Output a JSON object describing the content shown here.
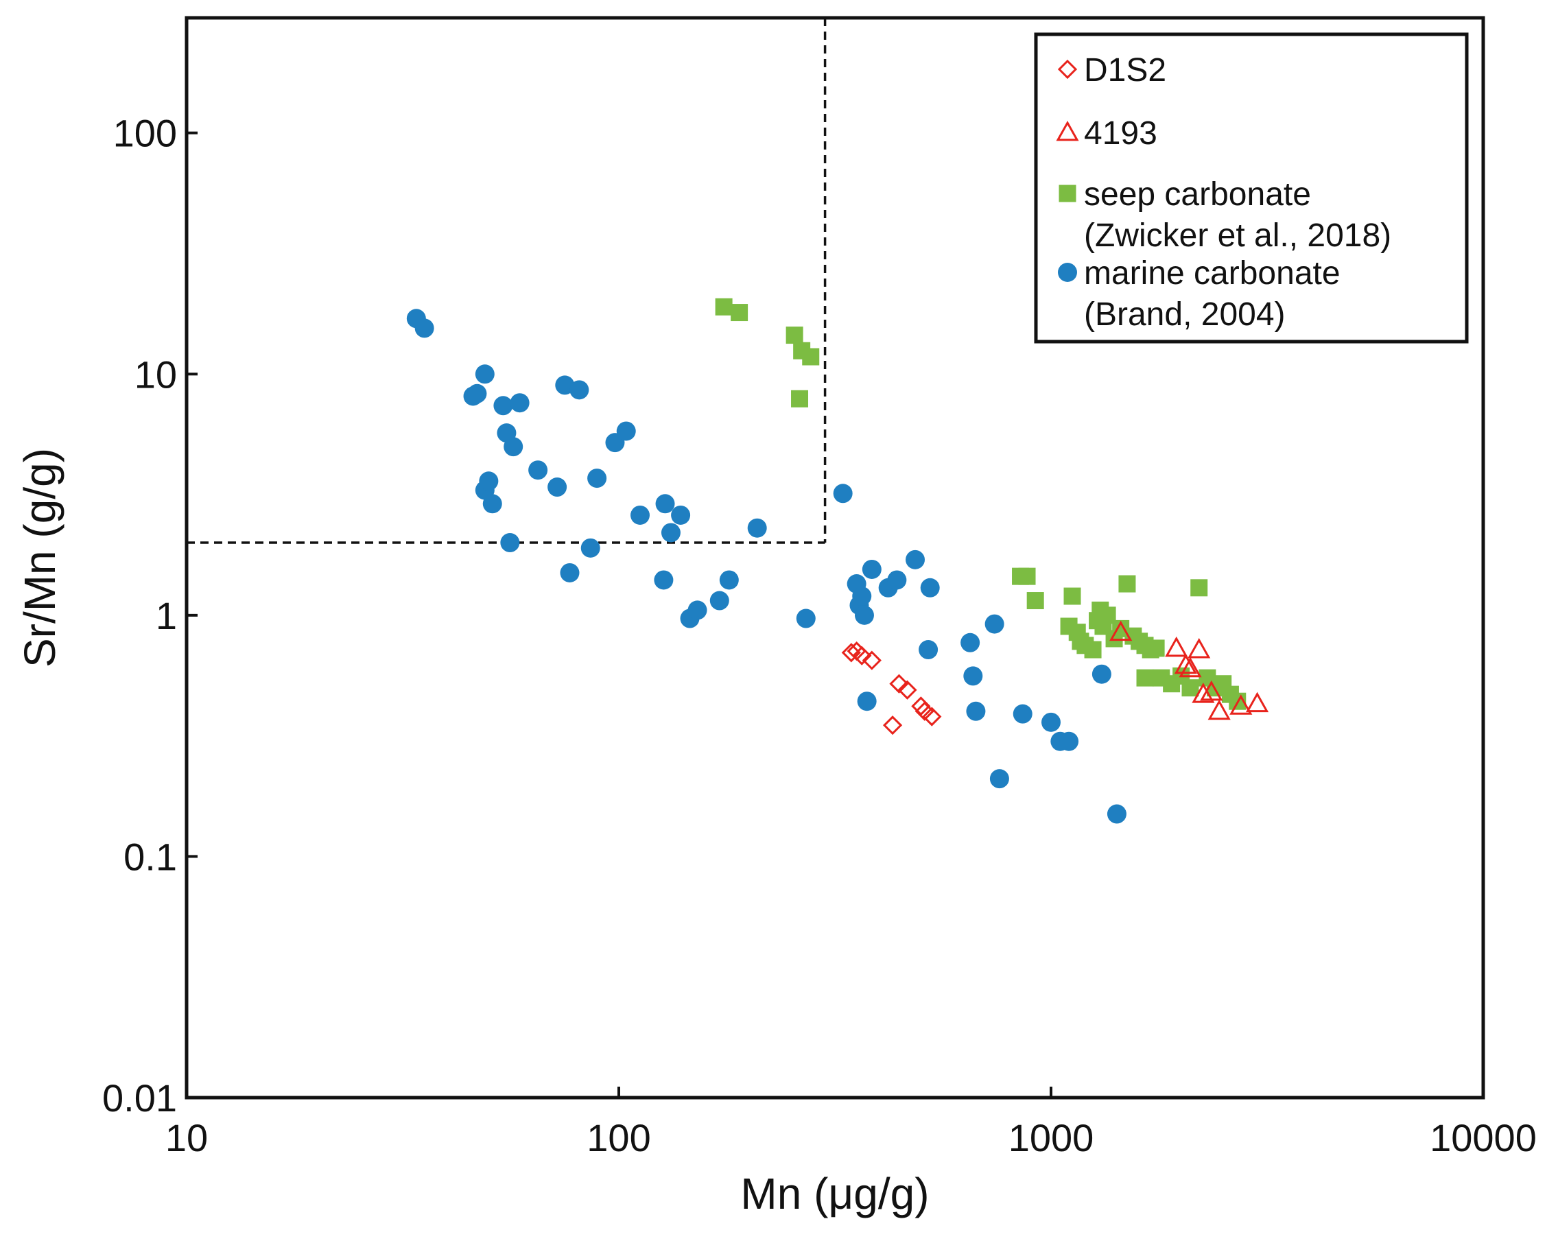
{
  "chart_data": {
    "type": "scatter",
    "title": "",
    "xlabel": "Mn (μg/g)",
    "ylabel": "Sr/Mn (g/g)",
    "xscale": "log",
    "yscale": "log",
    "xlim": [
      10,
      10000
    ],
    "ylim": [
      0.01,
      300
    ],
    "grid": false,
    "legend_position": "top-right",
    "xticks": [
      10,
      100,
      1000,
      10000
    ],
    "xtick_labels": [
      "10",
      "100",
      "1000",
      "10000"
    ],
    "yticks": [
      0.01,
      0.1,
      1,
      10,
      100
    ],
    "ytick_labels": [
      "0.01",
      "0.1",
      "1",
      "10",
      "100"
    ],
    "threshold_lines": {
      "mn_max": 300,
      "srmn_min": 2,
      "style": "dashed"
    },
    "legend": [
      {
        "label_lines": [
          "D1S2"
        ],
        "marker": "diamond-open",
        "color": "#e8231c"
      },
      {
        "label_lines": [
          "4193"
        ],
        "marker": "triangle-open",
        "color": "#e8231c"
      },
      {
        "label_lines": [
          "seep carbonate",
          "(Zwicker et al., 2018)"
        ],
        "marker": "square",
        "color": "#7cbc42"
      },
      {
        "label_lines": [
          "marine carbonate",
          "(Brand, 2004)"
        ],
        "marker": "circle",
        "color": "#1f7fc1"
      }
    ],
    "series": [
      {
        "name": "marine carbonate (Brand, 2004)",
        "marker": "circle",
        "color": "#1f7fc1",
        "points": [
          [
            34,
            17
          ],
          [
            35.5,
            15.5
          ],
          [
            46,
            8.1
          ],
          [
            47,
            8.3
          ],
          [
            49,
            10
          ],
          [
            54,
            7.4
          ],
          [
            59,
            7.6
          ],
          [
            55,
            5.7
          ],
          [
            57,
            5.0
          ],
          [
            65,
            4.0
          ],
          [
            75,
            9.0
          ],
          [
            81,
            8.6
          ],
          [
            98,
            5.2
          ],
          [
            104,
            5.8
          ],
          [
            49,
            3.3
          ],
          [
            50,
            3.6
          ],
          [
            51,
            2.9
          ],
          [
            56,
            2.0
          ],
          [
            72,
            3.4
          ],
          [
            89,
            3.7
          ],
          [
            112,
            2.6
          ],
          [
            128,
            2.9
          ],
          [
            132,
            2.2
          ],
          [
            139,
            2.6
          ],
          [
            209,
            2.3
          ],
          [
            86,
            1.9
          ],
          [
            77,
            1.5
          ],
          [
            127,
            1.4
          ],
          [
            146,
            0.97
          ],
          [
            152,
            1.05
          ],
          [
            171,
            1.15
          ],
          [
            180,
            1.4
          ],
          [
            271,
            0.97
          ],
          [
            330,
            3.2
          ],
          [
            355,
            1.35
          ],
          [
            360,
            1.1
          ],
          [
            365,
            1.2
          ],
          [
            370,
            1.0
          ],
          [
            385,
            1.55
          ],
          [
            420,
            1.3
          ],
          [
            440,
            1.4
          ],
          [
            485,
            1.7
          ],
          [
            525,
            1.3
          ],
          [
            520,
            0.72
          ],
          [
            375,
            0.44
          ],
          [
            650,
            0.77
          ],
          [
            660,
            0.56
          ],
          [
            670,
            0.4
          ],
          [
            740,
            0.92
          ],
          [
            760,
            0.21
          ],
          [
            860,
            0.39
          ],
          [
            1000,
            0.36
          ],
          [
            1050,
            0.3
          ],
          [
            1100,
            0.3
          ],
          [
            1310,
            0.57
          ],
          [
            1420,
            0.15
          ]
        ]
      },
      {
        "name": "seep carbonate (Zwicker et al., 2018)",
        "marker": "square",
        "color": "#7cbc42",
        "points": [
          [
            175,
            19
          ],
          [
            190,
            18
          ],
          [
            255,
            14.5
          ],
          [
            265,
            12.5
          ],
          [
            278,
            11.8
          ],
          [
            262,
            7.9
          ],
          [
            850,
            1.45
          ],
          [
            880,
            1.45
          ],
          [
            920,
            1.15
          ],
          [
            1120,
            1.2
          ],
          [
            1100,
            0.9
          ],
          [
            1150,
            0.85
          ],
          [
            1170,
            0.78
          ],
          [
            1200,
            0.75
          ],
          [
            1250,
            0.72
          ],
          [
            1280,
            0.95
          ],
          [
            1300,
            1.05
          ],
          [
            1320,
            0.9
          ],
          [
            1350,
            1.0
          ],
          [
            1400,
            0.8
          ],
          [
            1450,
            0.88
          ],
          [
            1500,
            1.35
          ],
          [
            1550,
            0.82
          ],
          [
            1600,
            0.78
          ],
          [
            1650,
            0.75
          ],
          [
            1700,
            0.72
          ],
          [
            1750,
            0.73
          ],
          [
            1650,
            0.55
          ],
          [
            1800,
            0.55
          ],
          [
            1900,
            0.52
          ],
          [
            2000,
            0.56
          ],
          [
            2100,
            0.5
          ],
          [
            2200,
            1.3
          ],
          [
            2300,
            0.55
          ],
          [
            2400,
            0.5
          ],
          [
            2500,
            0.52
          ],
          [
            2600,
            0.47
          ],
          [
            2700,
            0.44
          ]
        ]
      },
      {
        "name": "D1S2",
        "marker": "diamond-open",
        "color": "#e8231c",
        "points": [
          [
            345,
            0.7
          ],
          [
            355,
            0.71
          ],
          [
            365,
            0.68
          ],
          [
            385,
            0.65
          ],
          [
            430,
            0.35
          ],
          [
            445,
            0.52
          ],
          [
            465,
            0.49
          ],
          [
            500,
            0.42
          ],
          [
            510,
            0.4
          ],
          [
            530,
            0.38
          ]
        ]
      },
      {
        "name": "4193",
        "marker": "triangle-open",
        "color": "#e8231c",
        "points": [
          [
            1450,
            0.85
          ],
          [
            1950,
            0.73
          ],
          [
            2050,
            0.62
          ],
          [
            2100,
            0.6
          ],
          [
            2200,
            0.72
          ],
          [
            2250,
            0.47
          ],
          [
            2350,
            0.48
          ],
          [
            2450,
            0.4
          ],
          [
            2750,
            0.42
          ],
          [
            3000,
            0.43
          ]
        ]
      }
    ]
  }
}
